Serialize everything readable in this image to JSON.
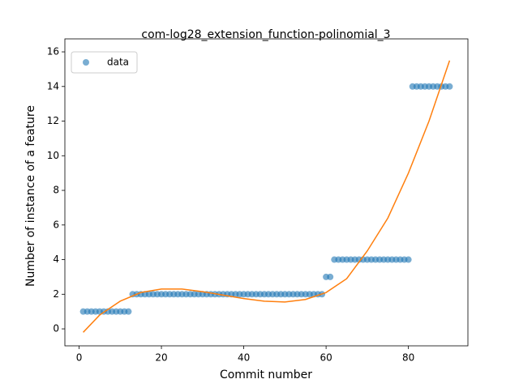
{
  "chart_data": {
    "type": "scatter",
    "title": "com-log28_extension_function-polinomial_3",
    "x_label": "Commit number",
    "y_label": "Number of instance of a feature",
    "xlim": [
      -3.45,
      94.45
    ],
    "ylim": [
      -0.98,
      16.75
    ],
    "xticks": [
      0,
      20,
      40,
      60,
      80
    ],
    "yticks": [
      0,
      2,
      4,
      6,
      8,
      10,
      12,
      14,
      16
    ],
    "legend": "upper left",
    "series": [
      {
        "name": "data",
        "color": "#1f77b4",
        "style": "markers",
        "x": [
          1,
          2,
          3,
          4,
          5,
          6,
          7,
          8,
          9,
          10,
          11,
          12,
          13,
          14,
          15,
          16,
          17,
          18,
          19,
          20,
          21,
          22,
          23,
          24,
          25,
          26,
          27,
          28,
          29,
          30,
          31,
          32,
          33,
          34,
          35,
          36,
          37,
          38,
          39,
          40,
          41,
          42,
          43,
          44,
          45,
          46,
          47,
          48,
          49,
          50,
          51,
          52,
          53,
          54,
          55,
          56,
          57,
          58,
          59,
          60,
          61,
          62,
          63,
          64,
          65,
          66,
          67,
          68,
          69,
          70,
          71,
          72,
          73,
          74,
          75,
          76,
          77,
          78,
          79,
          80,
          81,
          82,
          83,
          84,
          85,
          86,
          87,
          88,
          89,
          90
        ],
        "values": [
          1,
          1,
          1,
          1,
          1,
          1,
          1,
          1,
          1,
          1,
          1,
          1,
          2,
          2,
          2,
          2,
          2,
          2,
          2,
          2,
          2,
          2,
          2,
          2,
          2,
          2,
          2,
          2,
          2,
          2,
          2,
          2,
          2,
          2,
          2,
          2,
          2,
          2,
          2,
          2,
          2,
          2,
          2,
          2,
          2,
          2,
          2,
          2,
          2,
          2,
          2,
          2,
          2,
          2,
          2,
          2,
          2,
          2,
          2,
          3,
          3,
          4,
          4,
          4,
          4,
          4,
          4,
          4,
          4,
          4,
          4,
          4,
          4,
          4,
          4,
          4,
          4,
          4,
          4,
          4,
          14,
          14,
          14,
          14,
          14,
          14,
          14,
          14,
          14,
          14
        ]
      },
      {
        "color": "#ff7f0e",
        "style": "line",
        "x": [
          1,
          5,
          10,
          15,
          20,
          25,
          30,
          35,
          40,
          45,
          50,
          55,
          60,
          65,
          70,
          75,
          80,
          85,
          90
        ],
        "values": [
          -0.2,
          0.8,
          1.6,
          2.1,
          2.3,
          2.3,
          2.15,
          1.95,
          1.75,
          1.6,
          1.55,
          1.7,
          2.1,
          2.9,
          4.5,
          6.4,
          9.0,
          12.0,
          15.5
        ]
      }
    ]
  }
}
